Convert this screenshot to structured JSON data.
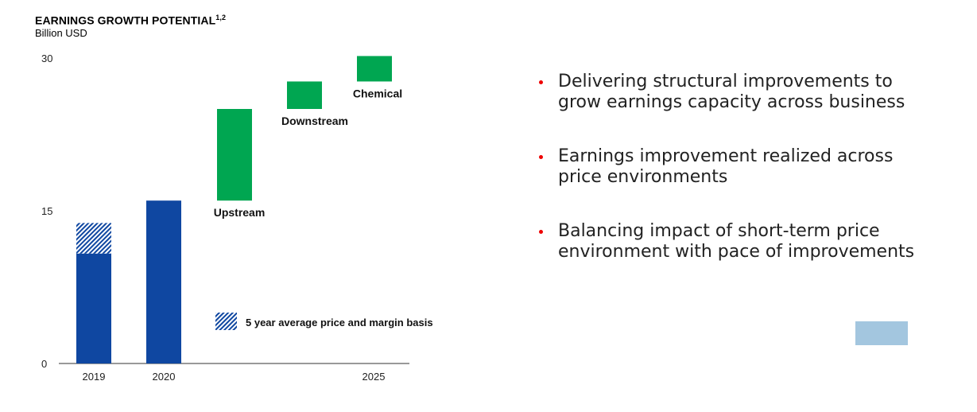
{
  "header": {
    "title": "EARNINGS GROWTH POTENTIAL",
    "title_sup": "1,2",
    "unit": "Billion USD"
  },
  "chart_data": {
    "type": "bar",
    "subtype": "waterfall",
    "title": "EARNINGS GROWTH POTENTIAL",
    "ylabel": "Billion USD",
    "ylim": [
      0,
      30
    ],
    "yticks": [
      "0",
      "15",
      "30"
    ],
    "categories": [
      "2019",
      "2020",
      "",
      "",
      "",
      "2025"
    ],
    "bars": [
      {
        "category": "2019",
        "kind": "base",
        "start": 0,
        "end": 10.8,
        "color": "#0f47a1"
      },
      {
        "category": "2019",
        "kind": "hatched",
        "start": 10.8,
        "end": 13.8,
        "color": "#0f47a1",
        "legend": "5 year average price and margin basis"
      },
      {
        "category": "2020",
        "kind": "base",
        "start": 0,
        "end": 16.0,
        "color": "#0f47a1"
      },
      {
        "category": "",
        "kind": "increment",
        "label": "Upstream",
        "start": 16.0,
        "end": 25.0,
        "color": "#00a651"
      },
      {
        "category": "",
        "kind": "increment",
        "label": "Downstream",
        "start": 25.0,
        "end": 27.7,
        "color": "#00a651"
      },
      {
        "category": "",
        "kind": "increment",
        "label": "Chemical",
        "start": 27.7,
        "end": 30.2,
        "color": "#00a651"
      }
    ],
    "legend": "5 year average price and margin basis",
    "grid": false
  },
  "bullets": [
    "Delivering structural improvements to grow earnings capacity across business",
    "Earnings improvement realized across price environments",
    "Balancing impact of short-term price environment with pace of improvements"
  ],
  "colors": {
    "blue": "#0f47a1",
    "green": "#00a651",
    "bullet_red": "#e00000",
    "logo_box": "#a3c6df"
  }
}
